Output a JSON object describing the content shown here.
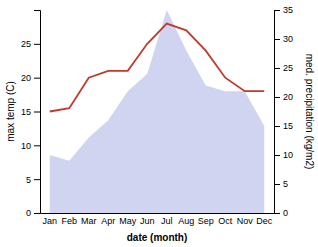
{
  "chart_data": {
    "type": "line",
    "categories": [
      "Jan",
      "Feb",
      "Mar",
      "Apr",
      "May",
      "Jun",
      "Jul",
      "Aug",
      "Sep",
      "Oct",
      "Nov",
      "Dec"
    ],
    "xlabel": "date (month)",
    "ylabel": "max temp (C)",
    "y2label": "med. precipitation (kg/m2)",
    "ylim": [
      0,
      30
    ],
    "yticks": [
      0,
      5,
      10,
      15,
      20,
      25
    ],
    "y2lim": [
      0,
      35
    ],
    "y2ticks": [
      0,
      5,
      10,
      15,
      20,
      25,
      30,
      35
    ],
    "grid": false,
    "series": [
      {
        "type": "area",
        "axis": "y2",
        "color": "#b0b8e8",
        "values": [
          10,
          9,
          13,
          16,
          21,
          24,
          35,
          28,
          22,
          21,
          21,
          15
        ]
      },
      {
        "type": "line",
        "color": "#c0392b",
        "values": [
          15,
          15.5,
          20,
          21,
          21,
          25,
          28,
          27,
          24,
          20,
          18,
          18
        ]
      }
    ]
  }
}
